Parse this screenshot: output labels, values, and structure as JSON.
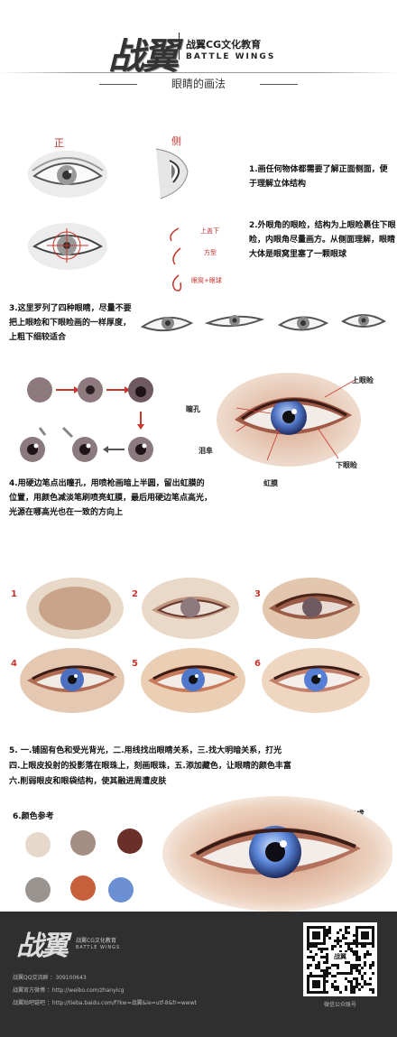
{
  "header": {
    "logo": "战翼",
    "brand_cn": "战翼CG文化教育",
    "brand_en": "BATTLE WINGS",
    "title": "眼睛的画法"
  },
  "sketch_labels": {
    "front": "正",
    "side": "侧"
  },
  "notes": {
    "note_1": "1.画任何物体都需要了解正面侧面，便于理解立体结构",
    "note_2": "2.外眼角的眼睑，结构为上眼睑裹住下眼睑，内眼角尽量画方。从侧面理解，眼睛大体是眼窝里塞了一颗眼球",
    "annot_upper": "上盖下",
    "annot_square": "方型",
    "annot_side": "眼窝+眼球",
    "note_3": "3.这里罗列了四种眼睛，尽量不要把上眼睑和下眼睑画的一样厚度，上粗下细较适合",
    "note_4": "4.用硬边笔点出瞳孔，用喷枪画暗上半圆，留出虹膜的位置，用颜色减淡笔刷喷亮虹膜，最后用硬边笔点高光，光源在哪高光也在一致的方向上",
    "note_5a": "5.  一.铺固有色和受光背光，二.用线找出眼睛关系，三.找大明暗关系，打光",
    "note_5b": "四.上眼皮投射的投影落在眼珠上，刻画眼珠，五.添加藏色，让眼睛的颜色丰富",
    "note_5c": "六.削弱眼皮和眼袋结构，使其融进周遭皮肤",
    "colors_title": "6.颜色参考",
    "done_title": "7.完成"
  },
  "eye_labels": {
    "upper_lid": "上眼睑",
    "pupil": "瞳孔",
    "caruncle": "泪阜",
    "iris": "虹膜",
    "lower_lid": "下眼睑"
  },
  "steps": [
    "1",
    "2",
    "3",
    "4",
    "5",
    "6"
  ],
  "palette": [
    "#e6d9cc",
    "#a58e84",
    "#6a3028",
    "#9a9490",
    "#c8603e",
    "#6b8fd2"
  ],
  "footer": {
    "logo": "战翼",
    "brand_cn": "战翼CG文化教育",
    "brand_en": "BATTLE WINGS",
    "qq": "战翼QQ交流群 ：309100643",
    "weibo": "战翼官方微博 ：http://weibo.com/zhanyicg",
    "tieba": "战翼贴吧链吧 ：http://tieba.baidu.com/f?kw=战翼&ie=utf-8&fr=wwwt",
    "qr_caption": "微信公众账号",
    "qr_center": "战翼"
  }
}
